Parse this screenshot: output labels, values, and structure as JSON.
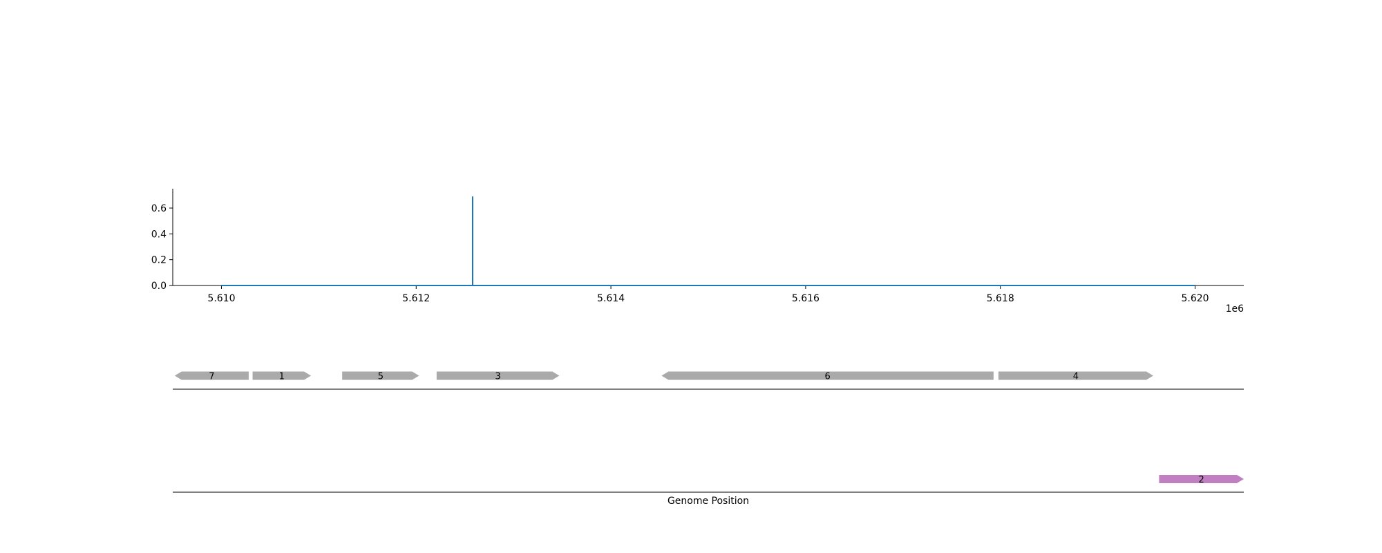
{
  "chart_data": [
    {
      "type": "line",
      "title": "",
      "xlabel": "",
      "ylabel": "",
      "x_offset_label": "1e6",
      "xlim": [
        5.6095,
        5.6205
      ],
      "ylim": [
        0.0,
        0.75
      ],
      "x_ticks": [
        {
          "value": 5.61,
          "label": "5.610"
        },
        {
          "value": 5.612,
          "label": "5.612"
        },
        {
          "value": 5.614,
          "label": "5.614"
        },
        {
          "value": 5.616,
          "label": "5.616"
        },
        {
          "value": 5.618,
          "label": "5.618"
        },
        {
          "value": 5.62,
          "label": "5.620"
        }
      ],
      "y_ticks": [
        {
          "value": 0.0,
          "label": "0.0"
        },
        {
          "value": 0.2,
          "label": "0.2"
        },
        {
          "value": 0.4,
          "label": "0.4"
        },
        {
          "value": 0.6,
          "label": "0.6"
        }
      ],
      "series": [
        {
          "color": "#1f77b4",
          "x": [
            5.61,
            5.61258,
            5.61258,
            5.61258,
            5.62
          ],
          "y": [
            0.0,
            0.0,
            0.69,
            0.0,
            0.0
          ]
        }
      ],
      "grid": false
    },
    {
      "type": "gene-track",
      "xlabel": "Genome Position",
      "xlim": [
        5.6095,
        5.6205
      ],
      "tracks": [
        {
          "genes": [
            {
              "label": "7",
              "start": 5.60952,
              "end": 5.61028,
              "strand": "-",
              "color": "#aaaaaa"
            },
            {
              "label": "1",
              "start": 5.61032,
              "end": 5.61092,
              "strand": "+",
              "color": "#aaaaaa"
            },
            {
              "label": "5",
              "start": 5.61124,
              "end": 5.61203,
              "strand": "+",
              "color": "#aaaaaa"
            },
            {
              "label": "3",
              "start": 5.61221,
              "end": 5.61347,
              "strand": "+",
              "color": "#aaaaaa"
            },
            {
              "label": "6",
              "start": 5.61452,
              "end": 5.61793,
              "strand": "-",
              "color": "#aaaaaa"
            },
            {
              "label": "4",
              "start": 5.61798,
              "end": 5.61957,
              "strand": "+",
              "color": "#aaaaaa"
            }
          ]
        },
        {
          "genes": [
            {
              "label": "2",
              "start": 5.61963,
              "end": 5.6205,
              "strand": "+",
              "color": "#c07fc0"
            }
          ]
        }
      ]
    }
  ]
}
